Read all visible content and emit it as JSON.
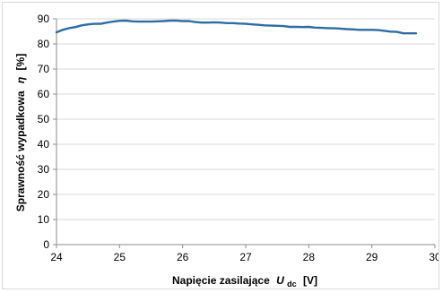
{
  "chart_data": {
    "type": "line",
    "title": "",
    "ylabel_text": "Sprawność wypadkowa",
    "ylabel_symbol": "η",
    "ylabel_unit": "[%]",
    "xlabel_text": "Napięcie zasilające",
    "xlabel_symbol": "U",
    "xlabel_subscript": "dc",
    "xlabel_unit": "[V]",
    "xlim": [
      24,
      30
    ],
    "ylim": [
      0,
      90
    ],
    "xticks": [
      "24",
      "25",
      "26",
      "27",
      "28",
      "29",
      "30"
    ],
    "yticks": [
      "0",
      "10",
      "20",
      "30",
      "40",
      "50",
      "60",
      "70",
      "80",
      "90"
    ],
    "grid": "horizontal",
    "legend": "none",
    "line_color": "#2e6da4",
    "series": [
      {
        "x": [
          24.0,
          24.1,
          24.2,
          24.3,
          24.4,
          24.5,
          24.6,
          24.7,
          24.8,
          24.9,
          25.0,
          25.1,
          25.2,
          25.3,
          25.4,
          25.5,
          25.6,
          25.7,
          25.8,
          25.9,
          26.0,
          26.1,
          26.2,
          26.3,
          26.4,
          26.5,
          26.6,
          26.7,
          26.8,
          26.9,
          27.0,
          27.1,
          27.2,
          27.3,
          27.4,
          27.5,
          27.6,
          27.7,
          27.8,
          27.9,
          28.0,
          28.1,
          28.2,
          28.3,
          28.4,
          28.5,
          28.6,
          28.7,
          28.8,
          28.9,
          29.0,
          29.1,
          29.2,
          29.3,
          29.4,
          29.5,
          29.6,
          29.7
        ],
        "y": [
          84.6,
          85.6,
          86.3,
          86.7,
          87.4,
          87.8,
          88.0,
          88.0,
          88.5,
          88.9,
          89.2,
          89.3,
          89.0,
          88.9,
          88.9,
          88.9,
          89.0,
          89.1,
          89.3,
          89.3,
          89.1,
          89.1,
          88.7,
          88.5,
          88.5,
          88.6,
          88.5,
          88.3,
          88.3,
          88.1,
          88.0,
          87.8,
          87.6,
          87.4,
          87.3,
          87.2,
          87.1,
          86.8,
          86.8,
          86.7,
          86.8,
          86.5,
          86.4,
          86.3,
          86.2,
          86.1,
          85.9,
          85.8,
          85.6,
          85.6,
          85.6,
          85.5,
          85.2,
          84.9,
          84.8,
          84.2,
          84.2,
          84.2
        ]
      }
    ]
  }
}
